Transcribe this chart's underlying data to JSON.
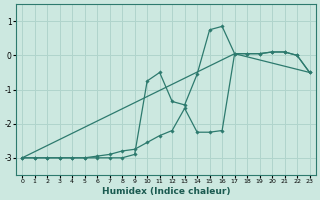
{
  "xlabel": "Humidex (Indice chaleur)",
  "xlim": [
    -0.5,
    23.5
  ],
  "ylim": [
    -3.5,
    1.5
  ],
  "yticks": [
    -3,
    -2,
    -1,
    0,
    1
  ],
  "xticks": [
    0,
    1,
    2,
    3,
    4,
    5,
    6,
    7,
    8,
    9,
    10,
    11,
    12,
    13,
    14,
    15,
    16,
    17,
    18,
    19,
    20,
    21,
    22,
    23
  ],
  "bg_color": "#cce8e0",
  "grid_color": "#b0d4cc",
  "line_color": "#2d7a6e",
  "line1_x": [
    0,
    1,
    2,
    3,
    4,
    5,
    6,
    7,
    8,
    9,
    10,
    11,
    12,
    13,
    14,
    15,
    16,
    17,
    18,
    19,
    20,
    21,
    22,
    23
  ],
  "line1_y": [
    -3.0,
    -3.0,
    -3.0,
    -3.0,
    -3.0,
    -3.0,
    -3.0,
    -3.0,
    -3.0,
    -2.9,
    -0.75,
    -0.5,
    -1.35,
    -1.45,
    -0.55,
    0.75,
    0.85,
    0.05,
    0.05,
    0.05,
    0.1,
    0.1,
    0.0,
    -0.5
  ],
  "line2_x": [
    0,
    1,
    2,
    3,
    4,
    5,
    6,
    7,
    8,
    9,
    10,
    11,
    12,
    13,
    14,
    15,
    16,
    17,
    18,
    19,
    20,
    21,
    22,
    23
  ],
  "line2_y": [
    -3.0,
    -3.0,
    -3.0,
    -3.0,
    -3.0,
    -3.0,
    -2.95,
    -2.9,
    -2.8,
    -2.75,
    -2.55,
    -2.35,
    -2.2,
    -1.55,
    -2.25,
    -2.25,
    -2.2,
    0.05,
    0.05,
    0.05,
    0.1,
    0.1,
    0.0,
    -0.5
  ],
  "line3_x": [
    0,
    17,
    23
  ],
  "line3_y": [
    -3.0,
    0.05,
    -0.5
  ]
}
